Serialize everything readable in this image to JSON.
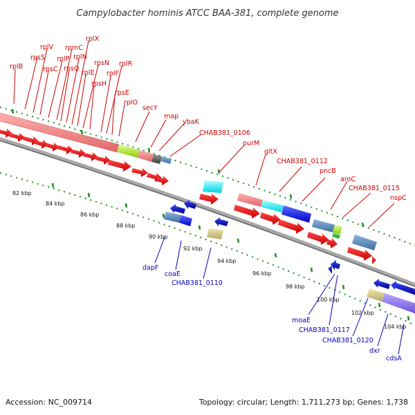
{
  "title": "Campylobacter hominis ATCC BAA-381, complete genome",
  "footer": {
    "accession": "Accession: NC_009714",
    "summary": "Topology: circular; Length: 1,711,273 bp; Genes: 1,738"
  },
  "scale_labels": [
    "82 kbp",
    "84 kbp",
    "86 kbp",
    "88 kbp",
    "90 kbp",
    "92 kbp",
    "94 kbp",
    "96 kbp",
    "98 kbp",
    "100 kbp",
    "102 kbp",
    "104 kbp"
  ],
  "top_gene_labels": [
    "rplB",
    "rpsS",
    "rplV",
    "rpsC",
    "rplP",
    "rpmC",
    "rpsQ",
    "rplN",
    "rplX",
    "rplE",
    "rpsN",
    "rpsH",
    "rplF",
    "rplR",
    "rpsE",
    "rplO",
    "secY",
    "map",
    "ybaK",
    "CHAB381_0106",
    "purM",
    "gltX",
    "CHAB381_0112",
    "pncB",
    "aroC",
    "CHAB381_0115",
    "nspC"
  ],
  "bottom_gene_labels": [
    "dapF",
    "coaE",
    "CHAB381_0110",
    "moaE",
    "CHAB381_0117",
    "CHAB381_0120",
    "dxr",
    "cdsA"
  ],
  "colors": {
    "forward_gene": "#ff0000",
    "reverse_gene": "#0000ff",
    "top_label": "#cc0000",
    "bottom_label": "#0000bb",
    "tick": "#228b22",
    "backbone": "#7f7f7f"
  }
}
